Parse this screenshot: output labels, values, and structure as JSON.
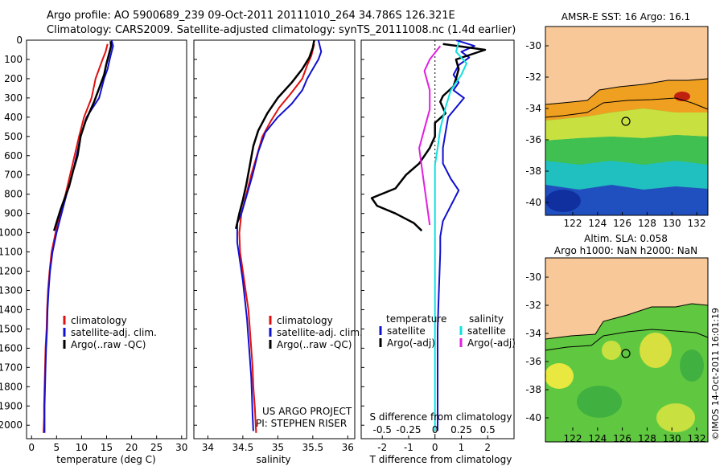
{
  "header": {
    "line1": "Argo profile: AO 5900689_239 09-Oct-2011 20111010_264 34.786S 126.321E",
    "line2": "Climatology: CARS2009. Satellite-adjusted climatology: synTS_20111008.nc (1.4d earlier)"
  },
  "colors": {
    "climatology": "#e01010",
    "satellite": "#1010d0",
    "argo": "#000000",
    "sat_salinity": "#10e0e0",
    "argo_salinity": "#e020e0",
    "land": "#f8c898"
  },
  "chart_data": [
    {
      "type": "line",
      "name": "temperature-profile",
      "xlabel": "temperature (deg C)",
      "xlim": [
        -1,
        31
      ],
      "ylim": [
        2070,
        0
      ],
      "xticks": [
        0,
        5,
        10,
        15,
        20,
        25,
        30
      ],
      "yticks": [
        0,
        100,
        200,
        300,
        400,
        500,
        600,
        700,
        800,
        900,
        1000,
        1100,
        1200,
        1300,
        1400,
        1500,
        1600,
        1700,
        1800,
        1900,
        2000
      ],
      "legend": [
        "climatology",
        "satellite-adj. clim.",
        "Argo(..raw -QC)"
      ],
      "series": [
        {
          "name": "climatology",
          "color": "#e01010",
          "points": [
            [
              15.2,
              20
            ],
            [
              14.8,
              60
            ],
            [
              14.2,
              100
            ],
            [
              13.5,
              150
            ],
            [
              12.8,
              200
            ],
            [
              12.0,
              300
            ],
            [
              10.5,
              400
            ],
            [
              9.5,
              500
            ],
            [
              8.6,
              600
            ],
            [
              7.7,
              700
            ],
            [
              6.8,
              800
            ],
            [
              5.8,
              900
            ],
            [
              4.8,
              1000
            ],
            [
              4.0,
              1100
            ],
            [
              3.6,
              1200
            ],
            [
              3.3,
              1300
            ],
            [
              3.1,
              1400
            ],
            [
              3.0,
              1500
            ],
            [
              2.8,
              1600
            ],
            [
              2.7,
              1700
            ],
            [
              2.6,
              1800
            ],
            [
              2.5,
              1900
            ],
            [
              2.5,
              1960
            ],
            [
              2.4,
              2040
            ]
          ]
        },
        {
          "name": "satellite-adj. clim.",
          "color": "#1010d0",
          "points": [
            [
              16.0,
              0
            ],
            [
              16.3,
              30
            ],
            [
              15.8,
              80
            ],
            [
              15.2,
              150
            ],
            [
              14.5,
              200
            ],
            [
              13.5,
              300
            ],
            [
              11.0,
              400
            ],
            [
              9.8,
              500
            ],
            [
              9.0,
              600
            ],
            [
              8.1,
              700
            ],
            [
              7.0,
              800
            ],
            [
              6.0,
              900
            ],
            [
              5.0,
              1000
            ],
            [
              4.2,
              1100
            ],
            [
              3.7,
              1200
            ],
            [
              3.4,
              1300
            ],
            [
              3.2,
              1400
            ],
            [
              3.1,
              1500
            ],
            [
              2.9,
              1600
            ],
            [
              2.8,
              1700
            ],
            [
              2.7,
              1800
            ],
            [
              2.6,
              1900
            ],
            [
              2.6,
              2040
            ]
          ]
        },
        {
          "name": "Argo(..raw -QC)",
          "color": "#000000",
          "points": [
            [
              15.8,
              5
            ],
            [
              15.9,
              30
            ],
            [
              15.4,
              80
            ],
            [
              14.9,
              130
            ],
            [
              14.5,
              180
            ],
            [
              13.5,
              250
            ],
            [
              12.5,
              320
            ],
            [
              10.8,
              420
            ],
            [
              9.8,
              500
            ],
            [
              9.2,
              600
            ],
            [
              8.3,
              680
            ],
            [
              7.5,
              760
            ],
            [
              6.5,
              830
            ],
            [
              5.8,
              880
            ],
            [
              5.2,
              930
            ],
            [
              4.5,
              990
            ]
          ]
        }
      ]
    },
    {
      "type": "line",
      "name": "salinity-profile",
      "xlabel": "salinity",
      "xlim": [
        33.8,
        36.1
      ],
      "ylim": [
        2070,
        0
      ],
      "xticks": [
        34,
        34.5,
        35,
        35.5,
        36
      ],
      "legend": [
        "climatology",
        "satellite-adj. clim.",
        "Argo(..raw -QC)"
      ],
      "annotations": [
        "US ARGO PROJECT",
        "PI: STEPHEN RISER"
      ],
      "series": [
        {
          "name": "climatology",
          "color": "#e01010",
          "points": [
            [
              35.52,
              20
            ],
            [
              35.48,
              80
            ],
            [
              35.42,
              130
            ],
            [
              35.35,
              200
            ],
            [
              35.18,
              280
            ],
            [
              35.02,
              350
            ],
            [
              34.9,
              420
            ],
            [
              34.78,
              500
            ],
            [
              34.7,
              600
            ],
            [
              34.62,
              700
            ],
            [
              34.55,
              800
            ],
            [
              34.48,
              900
            ],
            [
              34.45,
              1000
            ],
            [
              34.46,
              1100
            ],
            [
              34.5,
              1200
            ],
            [
              34.54,
              1300
            ],
            [
              34.58,
              1400
            ],
            [
              34.6,
              1500
            ],
            [
              34.62,
              1600
            ],
            [
              34.64,
              1700
            ],
            [
              34.65,
              1800
            ],
            [
              34.67,
              1900
            ],
            [
              34.69,
              2040
            ]
          ]
        },
        {
          "name": "satellite-adj. clim.",
          "color": "#1010d0",
          "points": [
            [
              35.58,
              0
            ],
            [
              35.62,
              60
            ],
            [
              35.58,
              100
            ],
            [
              35.5,
              150
            ],
            [
              35.42,
              200
            ],
            [
              35.35,
              260
            ],
            [
              35.2,
              330
            ],
            [
              35.0,
              400
            ],
            [
              34.82,
              480
            ],
            [
              34.72,
              580
            ],
            [
              34.64,
              700
            ],
            [
              34.56,
              800
            ],
            [
              34.48,
              900
            ],
            [
              34.42,
              950
            ],
            [
              34.42,
              1050
            ],
            [
              34.46,
              1150
            ],
            [
              34.5,
              1250
            ],
            [
              34.53,
              1350
            ],
            [
              34.56,
              1450
            ],
            [
              34.58,
              1550
            ],
            [
              34.6,
              1650
            ],
            [
              34.62,
              1750
            ],
            [
              34.63,
              1850
            ],
            [
              34.64,
              1950
            ],
            [
              34.65,
              2030
            ]
          ]
        },
        {
          "name": "Argo(..raw -QC)",
          "color": "#000000",
          "points": [
            [
              35.52,
              0
            ],
            [
              35.5,
              40
            ],
            [
              35.45,
              90
            ],
            [
              35.35,
              150
            ],
            [
              35.2,
              220
            ],
            [
              35.0,
              300
            ],
            [
              34.85,
              380
            ],
            [
              34.72,
              470
            ],
            [
              34.65,
              550
            ],
            [
              34.6,
              650
            ],
            [
              34.55,
              750
            ],
            [
              34.5,
              830
            ],
            [
              34.45,
              900
            ],
            [
              34.42,
              950
            ],
            [
              34.4,
              980
            ]
          ]
        }
      ]
    },
    {
      "type": "line",
      "name": "difference-profile",
      "xlabel": "T difference from climatology",
      "xlabel_top": "S difference from climatology",
      "xlim": [
        -2.8,
        3.0
      ],
      "ylim": [
        2070,
        0
      ],
      "xticks": [
        -2,
        -1,
        0,
        1,
        2
      ],
      "top_tick_labels": [
        "-0.5",
        "-0.25",
        "0",
        "0.25",
        "0.5"
      ],
      "legend": {
        "temperature_title": "temperature",
        "salinity_title": "salinity",
        "temp_satellite": "satellite",
        "temp_argo": "Argo(-adj)",
        "sal_satellite": "satellite",
        "sal_argo": "Argo(-adj)"
      },
      "series": [
        {
          "name": "T satellite",
          "color": "#1010d0",
          "points": [
            [
              0.8,
              0
            ],
            [
              1.5,
              30
            ],
            [
              1.0,
              60
            ],
            [
              1.3,
              90
            ],
            [
              0.9,
              130
            ],
            [
              0.7,
              180
            ],
            [
              0.9,
              220
            ],
            [
              0.7,
              260
            ],
            [
              1.1,
              300
            ],
            [
              0.5,
              400
            ],
            [
              0.4,
              480
            ],
            [
              0.3,
              560
            ],
            [
              0.3,
              640
            ],
            [
              0.6,
              720
            ],
            [
              0.9,
              780
            ],
            [
              0.6,
              860
            ],
            [
              0.3,
              940
            ],
            [
              0.2,
              1020
            ],
            [
              0.2,
              1100
            ],
            [
              0.15,
              1300
            ],
            [
              0.1,
              1500
            ],
            [
              0.1,
              1700
            ],
            [
              0.1,
              1900
            ],
            [
              0.1,
              2030
            ]
          ]
        },
        {
          "name": "T Argo",
          "color": "#000000",
          "points": [
            [
              0.3,
              20
            ],
            [
              1.9,
              50
            ],
            [
              0.8,
              100
            ],
            [
              0.9,
              150
            ],
            [
              0.8,
              200
            ],
            [
              0.7,
              240
            ],
            [
              0.3,
              290
            ],
            [
              0.2,
              320
            ],
            [
              0.4,
              380
            ],
            [
              0.0,
              430
            ],
            [
              0.0,
              500
            ],
            [
              -0.2,
              560
            ],
            [
              -0.6,
              640
            ],
            [
              -1.1,
              700
            ],
            [
              -1.5,
              770
            ],
            [
              -2.4,
              820
            ],
            [
              -2.2,
              860
            ],
            [
              -1.5,
              900
            ],
            [
              -0.8,
              950
            ],
            [
              -0.5,
              990
            ]
          ]
        },
        {
          "name": "S satellite",
          "color": "#10e0e0",
          "points": [
            [
              0.9,
              10
            ],
            [
              0.8,
              60
            ],
            [
              1.2,
              120
            ],
            [
              1.0,
              180
            ],
            [
              0.6,
              260
            ],
            [
              0.4,
              350
            ],
            [
              0.2,
              460
            ],
            [
              0.1,
              560
            ],
            [
              0.0,
              650
            ],
            [
              0.0,
              760
            ],
            [
              0.0,
              860
            ],
            [
              0.0,
              960
            ],
            [
              0.0,
              1100
            ],
            [
              0.0,
              1300
            ],
            [
              0.0,
              1500
            ],
            [
              0.0,
              1700
            ],
            [
              0.0,
              1900
            ],
            [
              0.0,
              2030
            ]
          ]
        },
        {
          "name": "S Argo",
          "color": "#e020e0",
          "points": [
            [
              0.2,
              30
            ],
            [
              -0.2,
              100
            ],
            [
              -0.4,
              160
            ],
            [
              -0.2,
              260
            ],
            [
              -0.2,
              360
            ],
            [
              -0.4,
              460
            ],
            [
              -0.6,
              560
            ],
            [
              -0.5,
              660
            ],
            [
              -0.4,
              760
            ],
            [
              -0.3,
              860
            ],
            [
              -0.2,
              960
            ]
          ]
        }
      ]
    },
    {
      "type": "heatmap",
      "name": "sst-map",
      "title": "AMSR-E SST: 16 Argo: 16.1",
      "xticks": [
        "122",
        "124",
        "126",
        "128",
        "130",
        "132"
      ],
      "yticks": [
        "-30",
        "-32",
        "-34",
        "-36",
        "-38",
        "-40"
      ]
    },
    {
      "type": "heatmap",
      "name": "sla-map",
      "title_line1": "Altim. SLA: 0.058",
      "title_line2": "Argo h1000: NaN h2000: NaN",
      "xticks": [
        "122",
        "124",
        "126",
        "128",
        "130",
        "132"
      ],
      "yticks": [
        "-30",
        "-32",
        "-34",
        "-36",
        "-38",
        "-40"
      ]
    }
  ],
  "footer": {
    "watermark": "©IMOS 14-Oct-2011 16:01:19"
  }
}
